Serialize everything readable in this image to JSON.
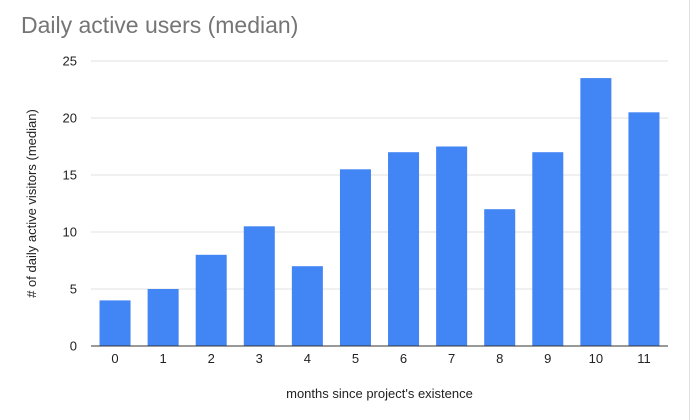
{
  "chart_data": {
    "type": "bar",
    "title": "Daily active users (median)",
    "xlabel": "months since project's existence",
    "ylabel": "# of daily active visitors (median)",
    "categories": [
      "0",
      "1",
      "2",
      "3",
      "4",
      "5",
      "6",
      "7",
      "8",
      "9",
      "10",
      "11"
    ],
    "values": [
      4,
      5,
      8,
      10.5,
      7,
      15.5,
      17,
      17.5,
      12,
      17,
      23.5,
      20.5
    ],
    "ylim": [
      0,
      25
    ],
    "yticks": [
      "0",
      "5",
      "10",
      "15",
      "20",
      "25"
    ],
    "grid": true,
    "legend": "none",
    "bar_color": "#4285f4",
    "grid_color": "#e0e0e0",
    "baseline_color": "#333333",
    "title_color": "#757575"
  }
}
